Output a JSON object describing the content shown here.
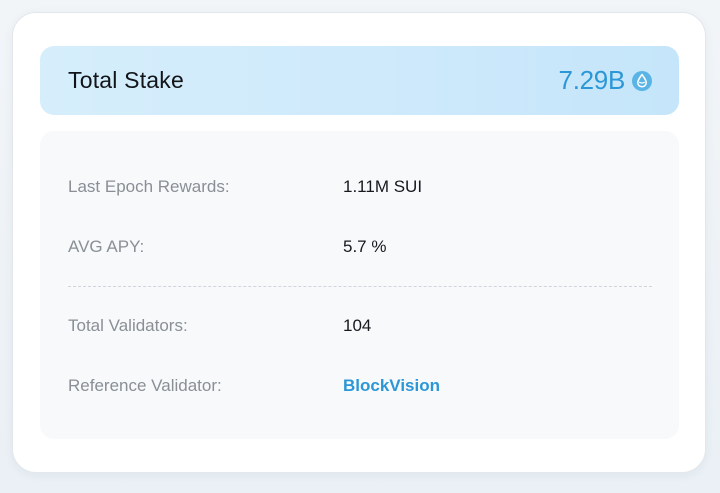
{
  "header": {
    "title": "Total Stake",
    "value": "7.29B",
    "icon": "sui-drop-icon",
    "accent_color": "#2b97d6"
  },
  "stats": {
    "last_epoch_rewards": {
      "label": "Last Epoch Rewards:",
      "value": "1.11M SUI"
    },
    "avg_apy": {
      "label": "AVG APY:",
      "value": "5.7 %"
    },
    "total_validators": {
      "label": "Total Validators:",
      "value": "104"
    },
    "reference_validator": {
      "label": "Reference Validator:",
      "value": "BlockVision"
    }
  }
}
